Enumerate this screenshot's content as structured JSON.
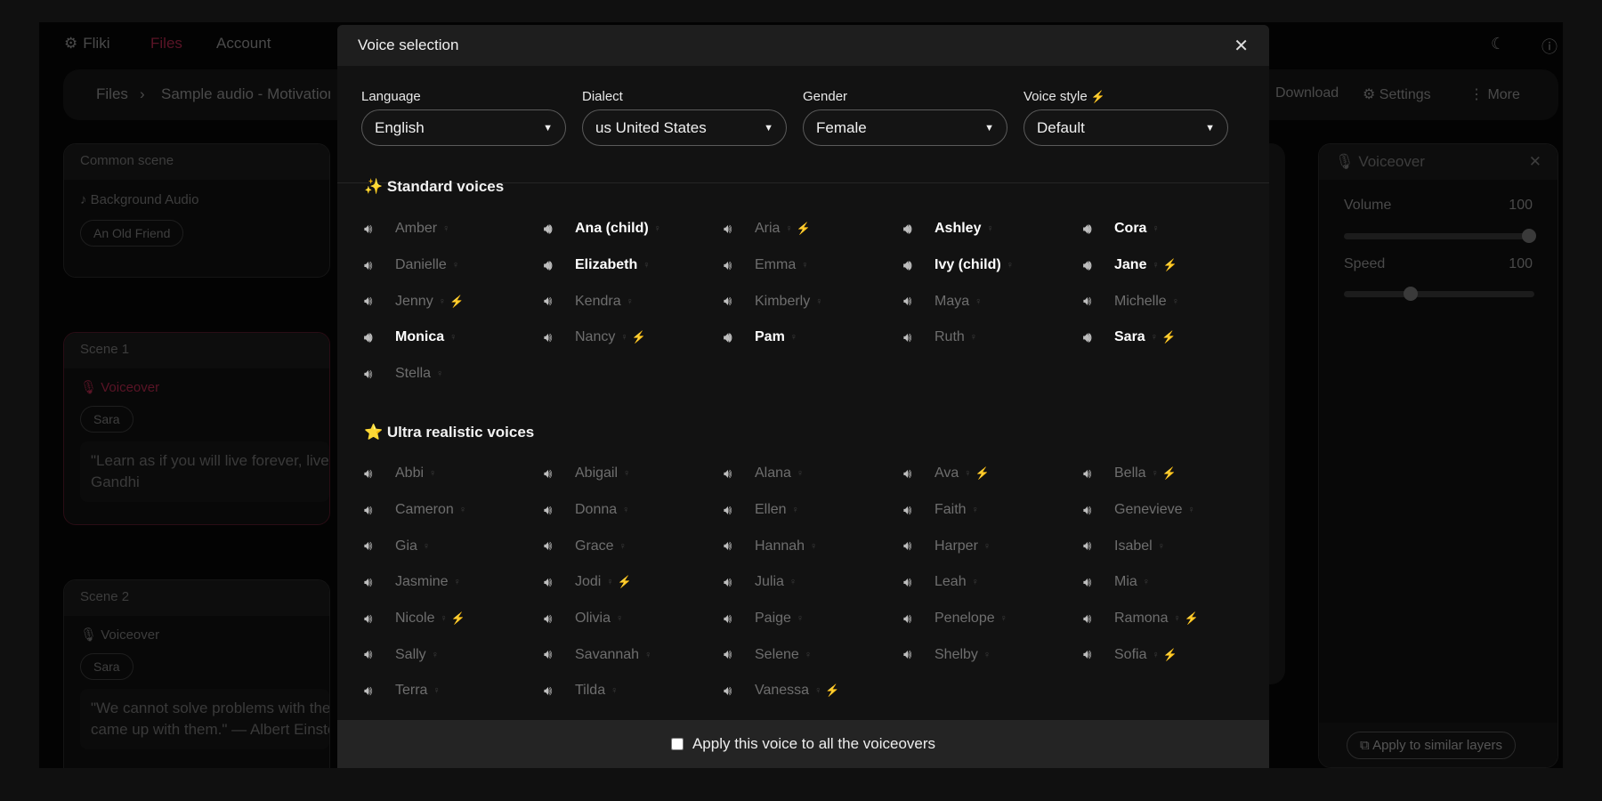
{
  "nav": {
    "logo": "Fliki",
    "files": "Files",
    "account": "Account"
  },
  "breadcrumb": {
    "root": "Files",
    "sep": "›",
    "current": "Sample audio - Motivation quotes",
    "download": "Download",
    "settings": "Settings",
    "more": "More"
  },
  "common_scene": {
    "title": "Common scene",
    "layer": "Background Audio",
    "pill": "An Old Friend"
  },
  "scene1": {
    "title": "Scene 1",
    "layer": "Voiceover",
    "voice": "Sara",
    "text_l1": "\"Learn as if you will live forever, live like you'll die tomorrow.\" — Mahatma",
    "text_l2": "Gandhi"
  },
  "scene2": {
    "title": "Scene 2",
    "layer": "Voiceover",
    "voice": "Sara",
    "text_l1": "\"We cannot solve problems with the kind of thinking we employed when we",
    "text_l2": "came up with them.\" — Albert Einstein"
  },
  "right_panel": {
    "title": "Voiceover",
    "volume_label": "Volume",
    "volume": 100,
    "speed_label": "Speed",
    "speed": 100,
    "speed_slider_fraction": 0.35,
    "apply_similar": "Apply to similar layers"
  },
  "modal": {
    "title": "Voice selection",
    "filters": {
      "language_label": "Language",
      "language": "English",
      "dialect_label": "Dialect",
      "dialect": "us United States",
      "gender_label": "Gender",
      "gender": "Female",
      "style_label": "Voice style",
      "style": "Default"
    },
    "standard_heading": "✨ Standard voices",
    "ultra_heading": "⭐ Ultra realistic voices",
    "standard": [
      {
        "name": "Amber"
      },
      {
        "name": "Ana (child)",
        "featured": true
      },
      {
        "name": "Aria",
        "premium": true
      },
      {
        "name": "Ashley",
        "featured": true
      },
      {
        "name": "Cora",
        "featured": true
      },
      {
        "name": "Danielle"
      },
      {
        "name": "Elizabeth",
        "featured": true
      },
      {
        "name": "Emma"
      },
      {
        "name": "Ivy (child)",
        "featured": true
      },
      {
        "name": "Jane",
        "featured": true,
        "premium": true
      },
      {
        "name": "Jenny",
        "premium": true
      },
      {
        "name": "Kendra"
      },
      {
        "name": "Kimberly"
      },
      {
        "name": "Maya"
      },
      {
        "name": "Michelle"
      },
      {
        "name": "Monica",
        "featured": true
      },
      {
        "name": "Nancy",
        "premium": true
      },
      {
        "name": "Pam",
        "featured": true
      },
      {
        "name": "Ruth"
      },
      {
        "name": "Sara",
        "featured": true,
        "premium": true
      },
      {
        "name": "Stella"
      }
    ],
    "ultra": [
      {
        "name": "Abbi"
      },
      {
        "name": "Abigail"
      },
      {
        "name": "Alana"
      },
      {
        "name": "Ava",
        "premium": true
      },
      {
        "name": "Bella",
        "premium": true
      },
      {
        "name": "Cameron"
      },
      {
        "name": "Donna"
      },
      {
        "name": "Ellen"
      },
      {
        "name": "Faith"
      },
      {
        "name": "Genevieve"
      },
      {
        "name": "Gia"
      },
      {
        "name": "Grace"
      },
      {
        "name": "Hannah"
      },
      {
        "name": "Harper"
      },
      {
        "name": "Isabel"
      },
      {
        "name": "Jasmine"
      },
      {
        "name": "Jodi",
        "premium": true
      },
      {
        "name": "Julia"
      },
      {
        "name": "Leah"
      },
      {
        "name": "Mia"
      },
      {
        "name": "Nicole",
        "premium": true
      },
      {
        "name": "Olivia"
      },
      {
        "name": "Paige"
      },
      {
        "name": "Penelope"
      },
      {
        "name": "Ramona",
        "premium": true
      },
      {
        "name": "Sally"
      },
      {
        "name": "Savannah"
      },
      {
        "name": "Selene"
      },
      {
        "name": "Shelby"
      },
      {
        "name": "Sofia",
        "premium": true
      },
      {
        "name": "Terra"
      },
      {
        "name": "Tilda"
      },
      {
        "name": "Vanessa",
        "premium": true
      }
    ],
    "apply_all": "Apply this voice to all the voiceovers"
  },
  "colors": {
    "accent": "#c0234a",
    "premium": "#ff8a1e"
  }
}
